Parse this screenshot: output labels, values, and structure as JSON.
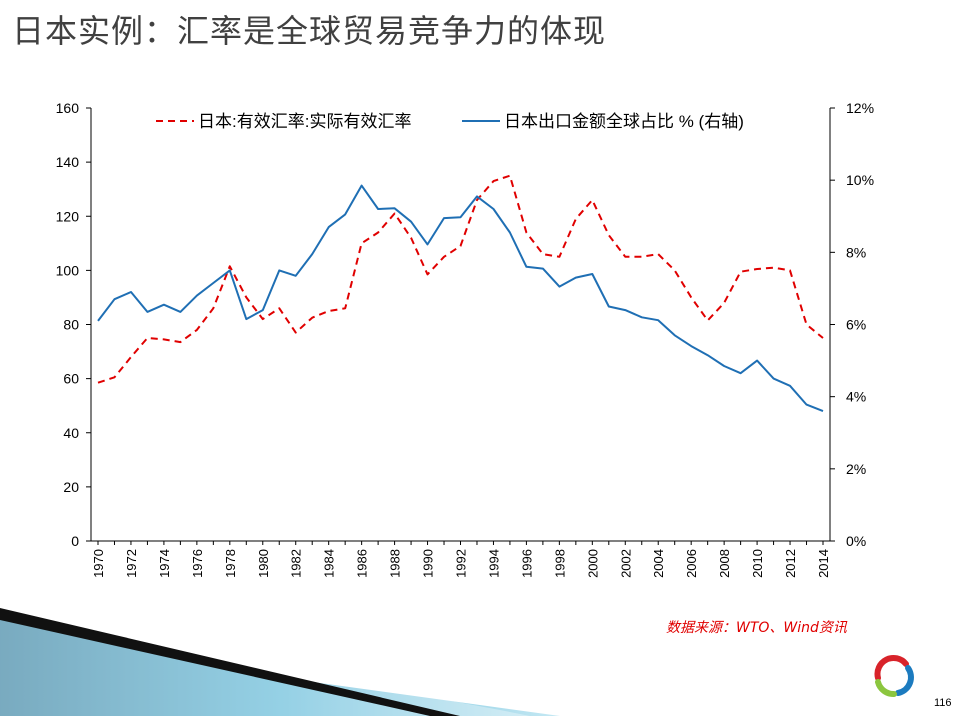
{
  "slide": {
    "title": "日本实例：汇率是全球贸易竞争力的体现",
    "source_note": "数据来源：WTO、Wind资讯",
    "page_number": "116"
  },
  "colors": {
    "reer_line": "#e00000",
    "export_share_line": "#1f6fb4",
    "title_text": "#404040",
    "source_note": "#e00000"
  },
  "chart_data": {
    "type": "line",
    "title": "",
    "legend_position": "top-center",
    "grid": false,
    "x": [
      1970,
      1971,
      1972,
      1973,
      1974,
      1975,
      1976,
      1977,
      1978,
      1979,
      1980,
      1981,
      1982,
      1983,
      1984,
      1985,
      1986,
      1987,
      1988,
      1989,
      1990,
      1991,
      1992,
      1993,
      1994,
      1995,
      1996,
      1997,
      1998,
      1999,
      2000,
      2001,
      2002,
      2003,
      2004,
      2005,
      2006,
      2007,
      2008,
      2009,
      2010,
      2011,
      2012,
      2013,
      2014
    ],
    "x_tick_labels": [
      "1970",
      "1972",
      "1974",
      "1976",
      "1978",
      "1980",
      "1982",
      "1984",
      "1986",
      "1988",
      "1990",
      "1992",
      "1994",
      "1996",
      "1998",
      "2000",
      "2002",
      "2004",
      "2006",
      "2008",
      "2010",
      "2012",
      "2014"
    ],
    "y_left": {
      "range": [
        0,
        160
      ],
      "ticks": [
        0,
        20,
        40,
        60,
        80,
        100,
        120,
        140,
        160
      ],
      "tick_labels": [
        "0",
        "20",
        "40",
        "60",
        "80",
        "100",
        "120",
        "140",
        "160"
      ]
    },
    "y_right": {
      "range": [
        0,
        12
      ],
      "ticks": [
        0,
        2,
        4,
        6,
        8,
        10,
        12
      ],
      "tick_labels": [
        "0%",
        "2%",
        "4%",
        "6%",
        "8%",
        "10%",
        "12%"
      ]
    },
    "series": [
      {
        "name": "日本:有效汇率:实际有效汇率",
        "axis": "left",
        "style": "dashed",
        "values": [
          58.5,
          60.5,
          68,
          75,
          74.5,
          73.5,
          78,
          86,
          101.5,
          90,
          82,
          86,
          77,
          82.5,
          85,
          86,
          110,
          114,
          121,
          112,
          98.5,
          105,
          109,
          126,
          133,
          135,
          114,
          106,
          105,
          119,
          126,
          113,
          105,
          105,
          106,
          100,
          90,
          81.5,
          88,
          99.5,
          100.5,
          101,
          100,
          80,
          75
        ]
      },
      {
        "name": "日本出口金额全球占比 % (右轴)",
        "axis": "right",
        "style": "solid",
        "values": [
          6.1,
          6.7,
          6.9,
          6.35,
          6.55,
          6.35,
          6.8,
          7.15,
          7.5,
          6.15,
          6.4,
          7.5,
          7.35,
          7.95,
          8.7,
          9.05,
          9.85,
          9.2,
          9.22,
          8.85,
          8.22,
          8.95,
          8.97,
          9.55,
          9.2,
          8.55,
          7.6,
          7.55,
          7.05,
          7.3,
          7.4,
          6.5,
          6.4,
          6.2,
          6.12,
          5.7,
          5.4,
          5.15,
          4.85,
          4.65,
          5.0,
          4.5,
          4.3,
          3.78,
          3.6
        ]
      }
    ]
  }
}
